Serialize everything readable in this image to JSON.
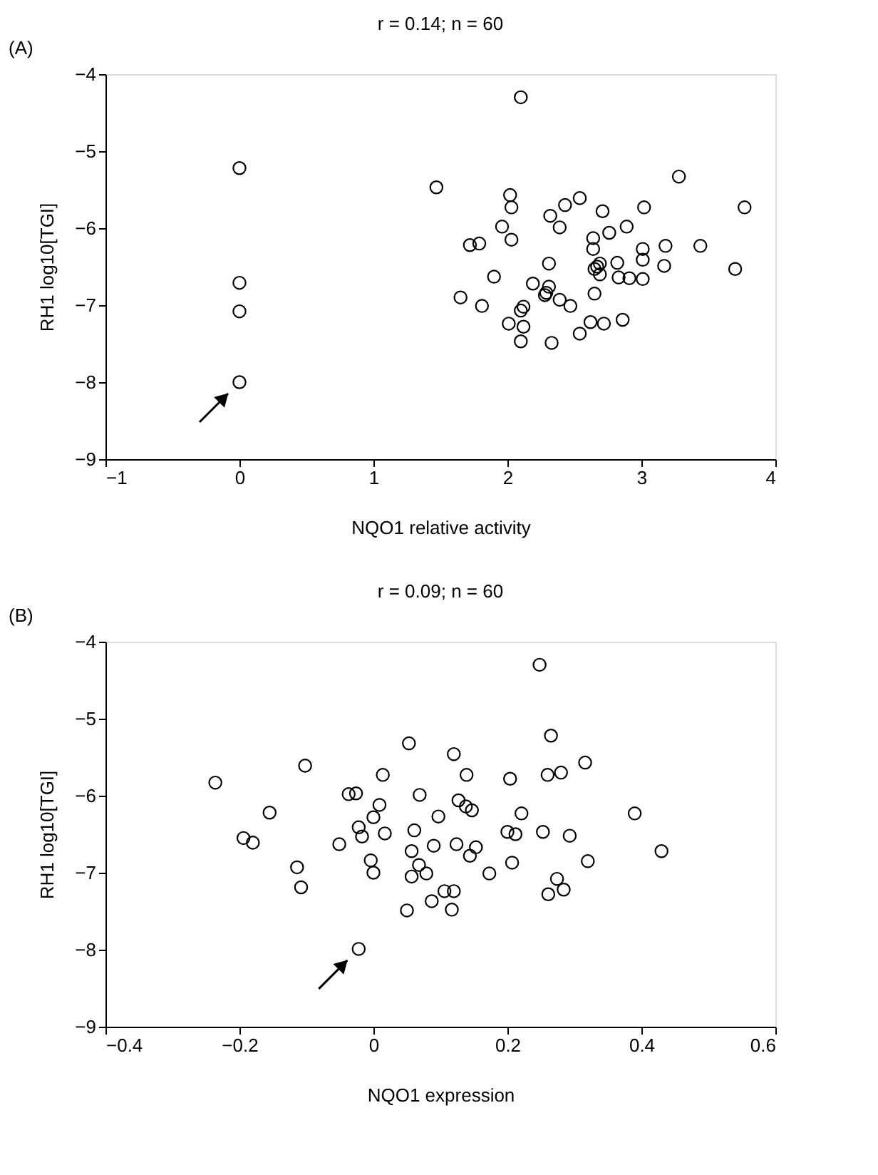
{
  "chart_data": [
    {
      "type": "scatter",
      "title": "r = 0.14;  n = 60",
      "xlabel": "NQO1 relative activity",
      "ylabel": "RH1 log10[TGI]",
      "annotations": [
        "(A)"
      ],
      "marker": "circle",
      "grid": false,
      "xlim": [
        -1,
        4
      ],
      "xticks": [
        -1,
        0,
        1,
        2,
        3,
        4
      ],
      "ylim": [
        -9,
        -4
      ],
      "yticks": [
        -9,
        -8,
        -7,
        -6,
        -5,
        -4
      ],
      "series": [
        {
          "color": "#000000",
          "x": [
            0,
            0,
            0,
            0,
            2.1,
            1.47,
            3.28,
            3.77,
            2.02,
            2.03,
            2.54,
            2.43,
            2.71,
            3.02,
            2.32,
            2.39,
            1.96,
            2.89,
            2.76,
            2.64,
            2.03,
            1.72,
            1.79,
            2.64,
            3.18,
            3.44,
            3.01,
            3.01,
            2.31,
            2.69,
            2.82,
            3.17,
            3.7,
            2.65,
            2.67,
            2.69,
            2.83,
            2.91,
            3.01,
            1.9,
            2.19,
            2.31,
            2.29,
            2.28,
            2.39,
            2.47,
            2.65,
            1.65,
            1.81,
            2.12,
            2.1,
            2.01,
            2.12,
            2.1,
            2.33,
            2.54,
            2.62,
            2.72,
            2.86
          ],
          "values": [
            -5.22,
            -6.71,
            -7.08,
            -8.0,
            -4.3,
            -5.47,
            -5.33,
            -5.73,
            -5.57,
            -5.73,
            -5.61,
            -5.7,
            -5.78,
            -5.73,
            -5.84,
            -5.99,
            -5.98,
            -5.98,
            -6.06,
            -6.13,
            -6.15,
            -6.22,
            -6.2,
            -6.27,
            -6.23,
            -6.23,
            -6.27,
            -6.41,
            -6.46,
            -6.46,
            -6.45,
            -6.49,
            -6.53,
            -6.53,
            -6.5,
            -6.6,
            -6.64,
            -6.65,
            -6.66,
            -6.63,
            -6.72,
            -6.76,
            -6.84,
            -6.87,
            -6.93,
            -7.01,
            -6.85,
            -6.9,
            -7.01,
            -7.02,
            -7.07,
            -7.24,
            -7.28,
            -7.47,
            -7.49,
            -7.37,
            -7.22,
            -7.24,
            -7.19
          ]
        }
      ]
    },
    {
      "type": "scatter",
      "title": "r = 0.09;  n = 60",
      "xlabel": "NQO1 expression",
      "ylabel": "RH1 log10[TGI]",
      "annotations": [
        "(B)"
      ],
      "marker": "circle",
      "grid": false,
      "xlim": [
        -0.4,
        0.6
      ],
      "xticks": [
        -0.4,
        -0.2,
        0,
        0.2,
        0.4,
        0.6
      ],
      "ylim": [
        -9,
        -4
      ],
      "yticks": [
        -9,
        -8,
        -7,
        -6,
        -5,
        -4
      ],
      "series": [
        {
          "color": "#000000",
          "x": [
            -0.236,
            -0.102,
            -0.155,
            -0.194,
            -0.18,
            -0.114,
            -0.108,
            -0.051,
            -0.037,
            -0.026,
            -0.022,
            -0.017,
            -0.004,
            0.0,
            0.0,
            0.009,
            0.017,
            0.014,
            -0.022,
            0.053,
            0.069,
            0.061,
            0.057,
            0.068,
            0.057,
            0.079,
            0.05,
            0.087,
            0.09,
            0.097,
            0.106,
            0.12,
            0.117,
            0.12,
            0.124,
            0.127,
            0.139,
            0.138,
            0.147,
            0.144,
            0.153,
            0.173,
            0.204,
            0.2,
            0.212,
            0.207,
            0.221,
            0.248,
            0.265,
            0.26,
            0.28,
            0.253,
            0.293,
            0.274,
            0.261,
            0.284,
            0.316,
            0.32,
            0.39,
            0.43
          ],
          "values": [
            -5.83,
            -5.61,
            -6.22,
            -6.55,
            -6.61,
            -6.93,
            -7.19,
            -6.63,
            -5.98,
            -5.97,
            -6.41,
            -6.53,
            -6.84,
            -7.0,
            -6.28,
            -6.12,
            -6.49,
            -5.73,
            -7.99,
            -5.32,
            -5.99,
            -6.45,
            -6.72,
            -6.9,
            -7.05,
            -7.01,
            -7.49,
            -7.37,
            -6.65,
            -6.27,
            -7.24,
            -7.24,
            -7.48,
            -5.46,
            -6.63,
            -6.06,
            -5.73,
            -6.14,
            -6.19,
            -6.78,
            -6.67,
            -7.01,
            -5.78,
            -6.47,
            -6.5,
            -6.87,
            -6.23,
            -4.3,
            -5.22,
            -5.73,
            -5.7,
            -6.47,
            -6.52,
            -7.08,
            -7.28,
            -7.22,
            -5.57,
            -6.85,
            -6.23,
            -6.72
          ]
        }
      ]
    }
  ]
}
